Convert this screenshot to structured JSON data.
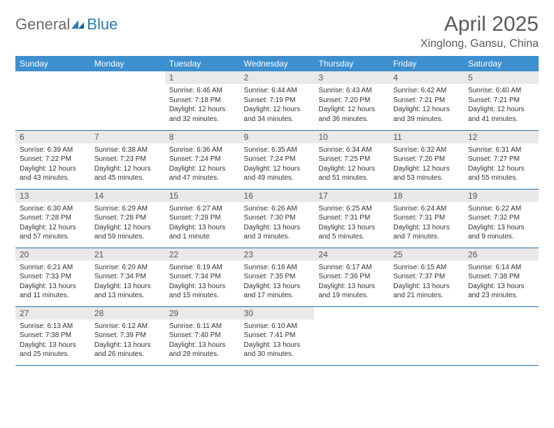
{
  "logo": {
    "text1": "General",
    "text2": "Blue"
  },
  "title": "April 2025",
  "location": "Xinglong, Gansu, China",
  "header_bg": "#3e8fce",
  "week_border": "#2a6fa8",
  "daynum_bg": "#e9e9e9",
  "day_headers": [
    "Sunday",
    "Monday",
    "Tuesday",
    "Wednesday",
    "Thursday",
    "Friday",
    "Saturday"
  ],
  "weeks": [
    [
      {},
      {},
      {
        "n": "1",
        "sr": "Sunrise: 6:46 AM",
        "ss": "Sunset: 7:18 PM",
        "d1": "Daylight: 12 hours",
        "d2": "and 32 minutes."
      },
      {
        "n": "2",
        "sr": "Sunrise: 6:44 AM",
        "ss": "Sunset: 7:19 PM",
        "d1": "Daylight: 12 hours",
        "d2": "and 34 minutes."
      },
      {
        "n": "3",
        "sr": "Sunrise: 6:43 AM",
        "ss": "Sunset: 7:20 PM",
        "d1": "Daylight: 12 hours",
        "d2": "and 36 minutes."
      },
      {
        "n": "4",
        "sr": "Sunrise: 6:42 AM",
        "ss": "Sunset: 7:21 PM",
        "d1": "Daylight: 12 hours",
        "d2": "and 39 minutes."
      },
      {
        "n": "5",
        "sr": "Sunrise: 6:40 AM",
        "ss": "Sunset: 7:21 PM",
        "d1": "Daylight: 12 hours",
        "d2": "and 41 minutes."
      }
    ],
    [
      {
        "n": "6",
        "sr": "Sunrise: 6:39 AM",
        "ss": "Sunset: 7:22 PM",
        "d1": "Daylight: 12 hours",
        "d2": "and 43 minutes."
      },
      {
        "n": "7",
        "sr": "Sunrise: 6:38 AM",
        "ss": "Sunset: 7:23 PM",
        "d1": "Daylight: 12 hours",
        "d2": "and 45 minutes."
      },
      {
        "n": "8",
        "sr": "Sunrise: 6:36 AM",
        "ss": "Sunset: 7:24 PM",
        "d1": "Daylight: 12 hours",
        "d2": "and 47 minutes."
      },
      {
        "n": "9",
        "sr": "Sunrise: 6:35 AM",
        "ss": "Sunset: 7:24 PM",
        "d1": "Daylight: 12 hours",
        "d2": "and 49 minutes."
      },
      {
        "n": "10",
        "sr": "Sunrise: 6:34 AM",
        "ss": "Sunset: 7:25 PM",
        "d1": "Daylight: 12 hours",
        "d2": "and 51 minutes."
      },
      {
        "n": "11",
        "sr": "Sunrise: 6:32 AM",
        "ss": "Sunset: 7:26 PM",
        "d1": "Daylight: 12 hours",
        "d2": "and 53 minutes."
      },
      {
        "n": "12",
        "sr": "Sunrise: 6:31 AM",
        "ss": "Sunset: 7:27 PM",
        "d1": "Daylight: 12 hours",
        "d2": "and 55 minutes."
      }
    ],
    [
      {
        "n": "13",
        "sr": "Sunrise: 6:30 AM",
        "ss": "Sunset: 7:28 PM",
        "d1": "Daylight: 12 hours",
        "d2": "and 57 minutes."
      },
      {
        "n": "14",
        "sr": "Sunrise: 6:29 AM",
        "ss": "Sunset: 7:28 PM",
        "d1": "Daylight: 12 hours",
        "d2": "and 59 minutes."
      },
      {
        "n": "15",
        "sr": "Sunrise: 6:27 AM",
        "ss": "Sunset: 7:29 PM",
        "d1": "Daylight: 13 hours",
        "d2": "and 1 minute."
      },
      {
        "n": "16",
        "sr": "Sunrise: 6:26 AM",
        "ss": "Sunset: 7:30 PM",
        "d1": "Daylight: 13 hours",
        "d2": "and 3 minutes."
      },
      {
        "n": "17",
        "sr": "Sunrise: 6:25 AM",
        "ss": "Sunset: 7:31 PM",
        "d1": "Daylight: 13 hours",
        "d2": "and 5 minutes."
      },
      {
        "n": "18",
        "sr": "Sunrise: 6:24 AM",
        "ss": "Sunset: 7:31 PM",
        "d1": "Daylight: 13 hours",
        "d2": "and 7 minutes."
      },
      {
        "n": "19",
        "sr": "Sunrise: 6:22 AM",
        "ss": "Sunset: 7:32 PM",
        "d1": "Daylight: 13 hours",
        "d2": "and 9 minutes."
      }
    ],
    [
      {
        "n": "20",
        "sr": "Sunrise: 6:21 AM",
        "ss": "Sunset: 7:33 PM",
        "d1": "Daylight: 13 hours",
        "d2": "and 11 minutes."
      },
      {
        "n": "21",
        "sr": "Sunrise: 6:20 AM",
        "ss": "Sunset: 7:34 PM",
        "d1": "Daylight: 13 hours",
        "d2": "and 13 minutes."
      },
      {
        "n": "22",
        "sr": "Sunrise: 6:19 AM",
        "ss": "Sunset: 7:34 PM",
        "d1": "Daylight: 13 hours",
        "d2": "and 15 minutes."
      },
      {
        "n": "23",
        "sr": "Sunrise: 6:18 AM",
        "ss": "Sunset: 7:35 PM",
        "d1": "Daylight: 13 hours",
        "d2": "and 17 minutes."
      },
      {
        "n": "24",
        "sr": "Sunrise: 6:17 AM",
        "ss": "Sunset: 7:36 PM",
        "d1": "Daylight: 13 hours",
        "d2": "and 19 minutes."
      },
      {
        "n": "25",
        "sr": "Sunrise: 6:15 AM",
        "ss": "Sunset: 7:37 PM",
        "d1": "Daylight: 13 hours",
        "d2": "and 21 minutes."
      },
      {
        "n": "26",
        "sr": "Sunrise: 6:14 AM",
        "ss": "Sunset: 7:38 PM",
        "d1": "Daylight: 13 hours",
        "d2": "and 23 minutes."
      }
    ],
    [
      {
        "n": "27",
        "sr": "Sunrise: 6:13 AM",
        "ss": "Sunset: 7:38 PM",
        "d1": "Daylight: 13 hours",
        "d2": "and 25 minutes."
      },
      {
        "n": "28",
        "sr": "Sunrise: 6:12 AM",
        "ss": "Sunset: 7:39 PM",
        "d1": "Daylight: 13 hours",
        "d2": "and 26 minutes."
      },
      {
        "n": "29",
        "sr": "Sunrise: 6:11 AM",
        "ss": "Sunset: 7:40 PM",
        "d1": "Daylight: 13 hours",
        "d2": "and 28 minutes."
      },
      {
        "n": "30",
        "sr": "Sunrise: 6:10 AM",
        "ss": "Sunset: 7:41 PM",
        "d1": "Daylight: 13 hours",
        "d2": "and 30 minutes."
      },
      {},
      {},
      {}
    ]
  ]
}
